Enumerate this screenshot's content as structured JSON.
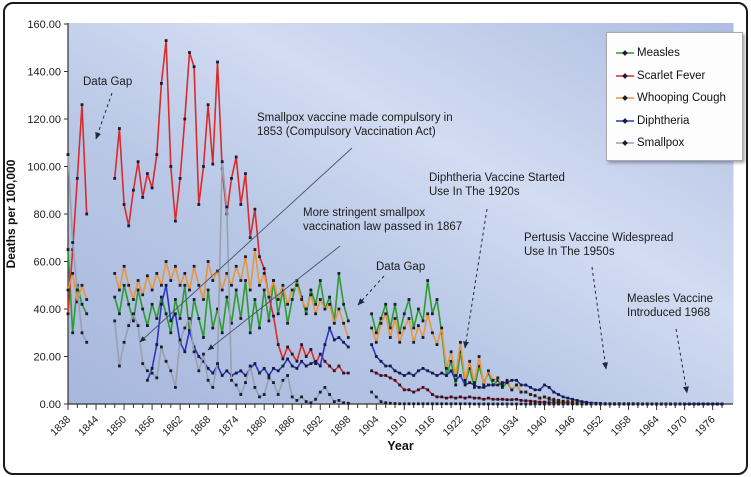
{
  "annotations": {
    "data_gap": "Data Gap",
    "smallpox_1853": "Smallpox vaccine made compulsory in 1853 (Compulsory Vaccination Act)",
    "smallpox_1867": "More stringent smallpox vaccination law passed in 1867",
    "diphtheria_vaccine": "Diphtheria Vaccine Started Use In The 1920s",
    "pertussis_vaccine": "Pertusis Vaccine Widespread Use In The 1950s",
    "measles_vaccine": "Measles Vaccine Introduced 1968"
  },
  "chart_data": {
    "type": "line",
    "xlabel": "Year",
    "ylabel": "Deaths per 100,000",
    "ylim": [
      0,
      160
    ],
    "y_tick_step": 20,
    "y_tick_labels": [
      "0.00",
      "20.00",
      "40.00",
      "60.00",
      "80.00",
      "100.00",
      "120.00",
      "140.00",
      "160.00"
    ],
    "x_range": [
      1838,
      1978
    ],
    "x_ticks": [
      1838,
      1844,
      1850,
      1856,
      1862,
      1868,
      1874,
      1880,
      1886,
      1892,
      1898,
      1904,
      1910,
      1916,
      1922,
      1928,
      1934,
      1940,
      1946,
      1952,
      1958,
      1964,
      1970,
      1976
    ],
    "data_gaps": [
      "1843-1847",
      "1899-1902"
    ],
    "legend_position": "top-right",
    "grid": false,
    "series": [
      {
        "name": "Measles",
        "color": "#2e9b2e",
        "values": [
          65,
          30,
          50,
          42,
          38,
          null,
          null,
          null,
          null,
          null,
          45,
          38,
          50,
          42,
          35,
          48,
          40,
          33,
          42,
          36,
          45,
          38,
          30,
          44,
          36,
          50,
          30,
          44,
          36,
          28,
          48,
          32,
          40,
          30,
          45,
          34,
          48,
          36,
          52,
          30,
          44,
          32,
          48,
          35,
          52,
          38,
          48,
          34,
          44,
          52,
          45,
          38,
          48,
          42,
          52,
          40,
          45,
          35,
          55,
          42,
          35,
          null,
          null,
          null,
          null,
          38,
          30,
          36,
          42,
          32,
          42,
          30,
          38,
          44,
          32,
          40,
          35,
          52,
          38,
          44,
          30,
          12,
          18,
          8,
          22,
          9,
          15,
          7,
          16,
          9,
          13,
          8,
          10,
          7,
          9,
          6,
          8,
          5,
          5,
          4,
          3.5,
          2.5,
          3,
          2,
          1.5,
          1.2,
          1,
          0.8,
          0.6,
          0.5,
          0.4,
          0.3,
          0.2,
          0.2,
          0.1,
          0.1,
          0.1,
          0.1,
          0.1,
          0.1,
          0.1,
          0.1,
          0.1,
          0,
          0,
          0,
          0,
          0,
          0,
          0,
          0,
          0,
          0,
          0,
          0,
          0,
          0,
          0,
          0,
          0,
          0
        ]
      },
      {
        "name": "Scarlet Fever",
        "color": "#d92b2b",
        "values": [
          38,
          65,
          95,
          126,
          80,
          null,
          null,
          null,
          null,
          null,
          95,
          116,
          84,
          75,
          90,
          102,
          87,
          97,
          91,
          105,
          135,
          153,
          100,
          77,
          95,
          120,
          148,
          142,
          84,
          100,
          126,
          101,
          144,
          99,
          80,
          95,
          104,
          84,
          97,
          70,
          82,
          62,
          57,
          45,
          37,
          25,
          19,
          24,
          21,
          18,
          25,
          20,
          23,
          17,
          21,
          18,
          16,
          14,
          16,
          13,
          13,
          null,
          null,
          null,
          null,
          14,
          13,
          12,
          12,
          11,
          10,
          8,
          6,
          6,
          5,
          6,
          7,
          6,
          4,
          3,
          3,
          2.5,
          3,
          2.5,
          3,
          2.5,
          3,
          2.5,
          2.5,
          2,
          2.5,
          2,
          2,
          2,
          1.8,
          1.8,
          2,
          1.5,
          1.4,
          1.2,
          1,
          0.8,
          0.8,
          0.6,
          0.5,
          0.4,
          0.4,
          0.3,
          0.2,
          0.2,
          0.1,
          0.1,
          0.1,
          0.1,
          0.1,
          0,
          0,
          0,
          0,
          0,
          0,
          0,
          0,
          0,
          0,
          0,
          0,
          0,
          0,
          0,
          0,
          0,
          0,
          0,
          0,
          0,
          0,
          0,
          0,
          0,
          0
        ]
      },
      {
        "name": "Whooping Cough",
        "color": "#e8963c",
        "values": [
          48,
          55,
          43,
          50,
          44,
          null,
          null,
          null,
          null,
          null,
          55,
          48,
          58,
          50,
          44,
          52,
          46,
          54,
          48,
          55,
          50,
          60,
          52,
          58,
          50,
          55,
          48,
          58,
          50,
          44,
          60,
          52,
          56,
          48,
          55,
          50,
          58,
          52,
          62,
          48,
          65,
          50,
          55,
          45,
          52,
          44,
          50,
          42,
          48,
          50,
          44,
          40,
          46,
          38,
          44,
          40,
          42,
          34,
          40,
          34,
          28,
          null,
          null,
          null,
          null,
          32,
          26,
          34,
          38,
          28,
          36,
          26,
          32,
          36,
          26,
          33,
          28,
          38,
          30,
          25,
          32,
          15,
          22,
          12,
          26,
          10,
          18,
          9,
          20,
          8,
          14,
          10,
          11,
          8,
          10,
          6,
          8,
          5,
          5,
          4,
          3.5,
          2.5,
          3,
          2.5,
          2,
          1.5,
          1.2,
          1,
          0.8,
          0.6,
          0.4,
          0.3,
          0.2,
          0.2,
          0.1,
          0.1,
          0.1,
          0.1,
          0.1,
          0.1,
          0.1,
          0.1,
          0.1,
          0,
          0,
          0,
          0,
          0,
          0,
          0,
          0,
          0,
          0,
          0,
          0,
          0,
          0,
          0,
          0,
          0,
          0
        ]
      },
      {
        "name": "Diphtheria",
        "color": "#2838c0",
        "values": [
          null,
          null,
          null,
          null,
          null,
          null,
          null,
          null,
          null,
          null,
          null,
          null,
          null,
          null,
          null,
          null,
          null,
          10,
          15,
          25,
          42,
          50,
          35,
          38,
          26,
          22,
          31,
          24,
          20,
          18,
          15,
          13,
          16,
          12,
          14,
          12,
          13,
          14,
          12,
          15,
          17,
          13,
          15,
          12,
          15,
          14,
          16,
          19,
          16,
          15,
          18,
          16,
          17,
          18,
          16,
          25,
          32,
          27,
          28,
          26,
          24,
          null,
          null,
          null,
          null,
          25,
          20,
          18,
          16,
          16,
          14,
          13,
          12,
          13,
          12,
          14,
          15,
          14,
          13,
          12,
          13,
          12,
          14,
          10,
          12,
          8,
          9,
          8,
          7,
          7,
          8,
          8,
          8,
          9,
          9,
          10,
          10,
          8,
          8,
          7,
          6,
          6,
          8,
          7,
          5,
          4,
          3,
          2.5,
          2,
          1.5,
          1,
          0.7,
          0.4,
          0.3,
          0.2,
          0.1,
          0,
          0,
          0,
          0,
          0,
          0,
          0,
          0,
          0,
          0,
          0,
          0,
          0,
          0,
          0,
          0,
          0,
          0,
          0,
          0,
          0,
          0,
          0,
          0,
          0
        ]
      },
      {
        "name": "Smallpox",
        "color": "#98a1ad",
        "values": [
          105,
          68,
          48,
          30,
          26,
          null,
          null,
          null,
          null,
          null,
          35,
          16,
          26,
          33,
          38,
          33,
          17,
          14,
          13,
          11,
          24,
          18,
          14,
          7,
          27,
          32,
          36,
          22,
          14,
          21,
          10,
          7,
          17,
          102,
          83,
          10,
          8,
          4,
          9,
          16,
          7,
          3,
          4,
          11,
          9,
          4,
          10,
          12,
          3,
          1.5,
          3,
          1,
          0.5,
          2,
          5,
          7,
          4,
          1,
          1.5,
          0.5,
          0.3,
          null,
          null,
          null,
          null,
          5,
          3,
          1,
          0.5,
          0.3,
          0.2,
          0.1,
          0.1,
          0.1,
          0.1,
          0.1,
          0.1,
          0.1,
          0.1,
          0.1,
          0.1,
          0.1,
          0.1,
          0.1,
          0.1,
          0.1,
          0.1,
          0,
          0,
          0,
          0,
          0,
          0,
          0,
          0,
          0,
          0,
          0,
          0,
          0,
          0,
          0,
          0,
          0,
          0,
          0,
          0,
          0,
          0,
          0,
          0,
          0,
          0,
          0,
          0,
          0,
          0,
          0,
          0,
          0,
          0,
          0,
          0,
          0,
          0,
          0,
          0,
          0,
          0,
          0,
          0,
          0,
          0
        ]
      }
    ]
  },
  "colors": {
    "plot_bg_dark": "#a7b7dc",
    "plot_bg_light": "#d2dcf2",
    "marker": "#1a1a33",
    "axis": "#333333"
  }
}
